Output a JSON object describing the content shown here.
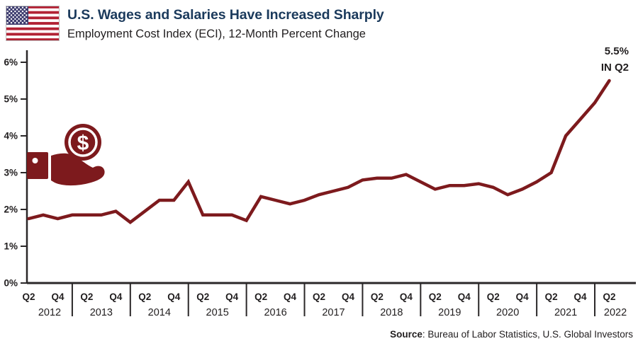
{
  "header": {
    "title": "U.S. Wages and Salaries Have Increased Sharply",
    "subtitle": "Employment Cost Index (ECI), 12-Month Percent Change",
    "title_color": "#1b3a5c"
  },
  "icons": {
    "flag": "us-flag-icon",
    "money_hand": "hand-holding-dollar-coin-icon",
    "dollar_symbol": "$"
  },
  "colors": {
    "line": "#7d1a1d",
    "icon": "#7d1a1d",
    "axis": "#2a2728",
    "text": "#211e1f",
    "title_navy": "#1b3a5c",
    "flag_red": "#b22234",
    "flag_blue": "#3c3b6e"
  },
  "chart_data": {
    "type": "line",
    "title": "U.S. Wages and Salaries Have Increased Sharply",
    "subtitle": "Employment Cost Index (ECI), 12-Month Percent Change",
    "series_name": "Employment Cost Index, 12-month percent change",
    "grid": false,
    "legend": false,
    "ylim": [
      0,
      6
    ],
    "yticks": [
      "0%",
      "1%",
      "2%",
      "3%",
      "4%",
      "5%",
      "6%"
    ],
    "x_quarter_labels_shown": [
      "Q2",
      "Q4"
    ],
    "x": [
      "Q2 2012",
      "Q3 2012",
      "Q4 2012",
      "Q1 2013",
      "Q2 2013",
      "Q3 2013",
      "Q4 2013",
      "Q1 2014",
      "Q2 2014",
      "Q3 2014",
      "Q4 2014",
      "Q1 2015",
      "Q2 2015",
      "Q3 2015",
      "Q4 2015",
      "Q1 2016",
      "Q2 2016",
      "Q3 2016",
      "Q4 2016",
      "Q1 2017",
      "Q2 2017",
      "Q3 2017",
      "Q4 2017",
      "Q1 2018",
      "Q2 2018",
      "Q3 2018",
      "Q4 2018",
      "Q1 2019",
      "Q2 2019",
      "Q3 2019",
      "Q4 2019",
      "Q1 2020",
      "Q2 2020",
      "Q3 2020",
      "Q4 2020",
      "Q1 2021",
      "Q2 2021",
      "Q3 2021",
      "Q4 2021",
      "Q1 2022",
      "Q2 2022"
    ],
    "values": [
      1.75,
      1.85,
      1.75,
      1.85,
      1.85,
      1.85,
      1.95,
      1.65,
      1.95,
      2.25,
      2.25,
      2.75,
      1.85,
      1.85,
      1.85,
      1.7,
      2.35,
      2.25,
      2.15,
      2.25,
      2.4,
      2.5,
      2.6,
      2.8,
      2.85,
      2.85,
      2.95,
      2.75,
      2.55,
      2.65,
      2.65,
      2.7,
      2.6,
      2.4,
      2.55,
      2.75,
      3.0,
      4.0,
      4.45,
      4.9,
      5.5
    ],
    "annotation": {
      "line1": "5.5%",
      "line2": "IN Q2"
    }
  },
  "footer": {
    "source_label": "Source",
    "source_detail": ": Bureau of Labor Statistics, U.S. Global Investors"
  }
}
